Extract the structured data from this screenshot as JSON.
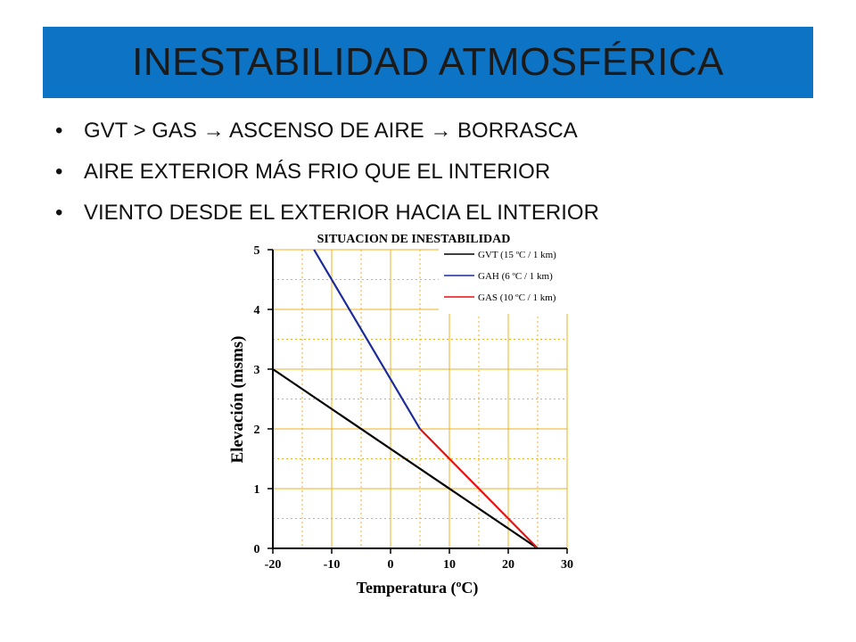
{
  "slide": {
    "title": "INESTABILIDAD ATMOSFÉRICA",
    "bullets": [
      "GVT > GAS → ASCENSO DE AIRE → BORRASCA",
      "AIRE EXTERIOR MÁS FRIO QUE EL INTERIOR",
      "VIENTO DESDE EL EXTERIOR HACIA EL INTERIOR"
    ],
    "colors": {
      "title_bar": "#0d73c4"
    }
  },
  "chart_data": {
    "type": "line",
    "title": "SITUACION DE INESTABILIDAD",
    "xlabel": "Temperatura (ºC)",
    "ylabel": "Elevación (msms)",
    "xlim": [
      -20,
      30
    ],
    "ylim": [
      0,
      5
    ],
    "x_ticks": [
      "-20",
      "-10",
      "0",
      "10",
      "20",
      "30"
    ],
    "y_ticks": [
      "0",
      "1",
      "2",
      "3",
      "4",
      "5"
    ],
    "grid": true,
    "legend_position": "top-right",
    "series": [
      {
        "name": "GVT (15 ºC / 1 km)",
        "color": "#000000",
        "points": [
          [
            25,
            0
          ],
          [
            -20,
            3
          ]
        ]
      },
      {
        "name": "GAH (6 ºC / 1 km)",
        "color": "#1a2a9a",
        "points": [
          [
            5,
            2
          ],
          [
            -13,
            5
          ]
        ]
      },
      {
        "name": "GAS (10 ºC / 1 km)",
        "color": "#e81010",
        "points": [
          [
            25,
            0
          ],
          [
            5,
            2
          ]
        ]
      }
    ]
  }
}
